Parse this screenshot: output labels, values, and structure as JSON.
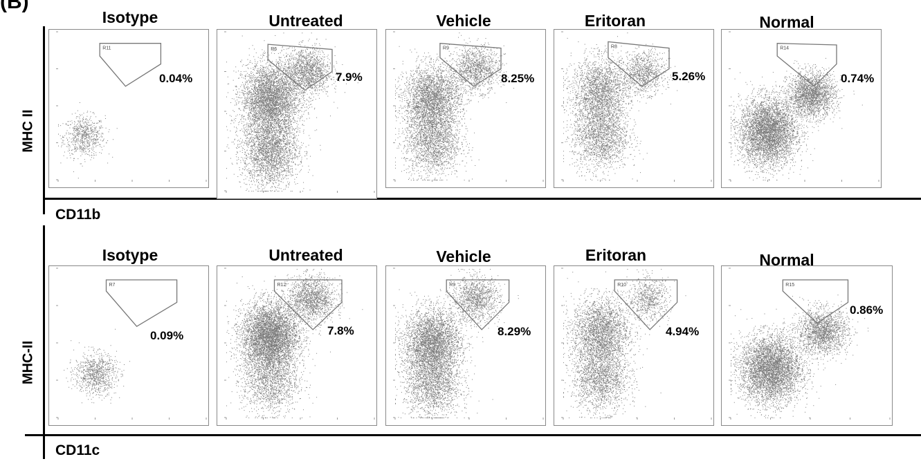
{
  "figure": {
    "panel_letter": "(B)"
  },
  "rows": [
    {
      "ylabel": "MHC II",
      "xlabel": "CD11b",
      "titles": [
        "Isotype",
        "Untreated",
        "Vehicle",
        "Eritoran",
        "Normal"
      ]
    },
    {
      "ylabel": "MHC-II",
      "xlabel": "CD11c",
      "titles": [
        "Isotype",
        "Untreated",
        "Vehicle",
        "Eritoran",
        "Normal"
      ]
    }
  ],
  "chart_data": [
    {
      "type": "scatter",
      "title": "Isotype",
      "xlabel": "CD11b",
      "ylabel": "MHC II",
      "xscale": "log",
      "yscale": "log",
      "xlim": [
        1,
        10000
      ],
      "ylim": [
        1,
        10000
      ],
      "gate": "R11",
      "gate_percent": "0.04%",
      "populations": [
        {
          "x": 5,
          "y": 15,
          "n": 700,
          "density": "low"
        }
      ]
    },
    {
      "type": "scatter",
      "title": "Untreated",
      "xlabel": "CD11b",
      "ylabel": "MHC II",
      "xscale": "log",
      "yscale": "log",
      "xlim": [
        1,
        10000
      ],
      "ylim": [
        1,
        10000
      ],
      "gate": "R6",
      "gate_percent": "7.9%",
      "populations": [
        {
          "x": 15,
          "y": 200,
          "n": 4000,
          "density": "high"
        },
        {
          "x": 15,
          "y": 10,
          "n": 2500,
          "density": "high"
        },
        {
          "x": 150,
          "y": 1000,
          "n": 1500,
          "density": "medium"
        }
      ]
    },
    {
      "type": "scatter",
      "title": "Vehicle",
      "xlabel": "CD11b",
      "ylabel": "MHC II",
      "xscale": "log",
      "yscale": "log",
      "xlim": [
        1,
        10000
      ],
      "ylim": [
        1,
        10000
      ],
      "gate": "R9",
      "gate_percent": "8.25%",
      "populations": [
        {
          "x": 10,
          "y": 150,
          "n": 3000,
          "density": "high"
        },
        {
          "x": 10,
          "y": 10,
          "n": 1800,
          "density": "high"
        },
        {
          "x": 150,
          "y": 1000,
          "n": 1200,
          "density": "medium"
        }
      ]
    },
    {
      "type": "scatter",
      "title": "Eritoran",
      "xlabel": "CD11b",
      "ylabel": "MHC II",
      "xscale": "log",
      "yscale": "log",
      "xlim": [
        1,
        10000
      ],
      "ylim": [
        1,
        10000
      ],
      "gate": "R8",
      "gate_percent": "5.26%",
      "populations": [
        {
          "x": 10,
          "y": 250,
          "n": 2200,
          "density": "high"
        },
        {
          "x": 10,
          "y": 15,
          "n": 1800,
          "density": "high"
        },
        {
          "x": 150,
          "y": 800,
          "n": 900,
          "density": "low"
        }
      ]
    },
    {
      "type": "scatter",
      "title": "Normal",
      "xlabel": "CD11b",
      "ylabel": "MHC II",
      "xscale": "log",
      "yscale": "log",
      "xlim": [
        1,
        10000
      ],
      "ylim": [
        1,
        10000
      ],
      "gate": "R14",
      "gate_percent": "0.74%",
      "populations": [
        {
          "x": 10,
          "y": 20,
          "n": 4500,
          "density": "high"
        },
        {
          "x": 150,
          "y": 200,
          "n": 2200,
          "density": "medium"
        }
      ]
    },
    {
      "type": "scatter",
      "title": "Isotype",
      "xlabel": "CD11c",
      "ylabel": "MHC-II",
      "xscale": "log",
      "yscale": "log",
      "xlim": [
        1,
        10000
      ],
      "ylim": [
        1,
        10000
      ],
      "gate": "R7",
      "gate_percent": "0.09%",
      "populations": [
        {
          "x": 10,
          "y": 15,
          "n": 900,
          "density": "low"
        }
      ]
    },
    {
      "type": "scatter",
      "title": "Untreated",
      "xlabel": "CD11c",
      "ylabel": "MHC-II",
      "xscale": "log",
      "yscale": "log",
      "xlim": [
        1,
        10000
      ],
      "ylim": [
        1,
        10000
      ],
      "gate": "R12",
      "gate_percent": "7.8%",
      "populations": [
        {
          "x": 15,
          "y": 150,
          "n": 5000,
          "density": "high"
        },
        {
          "x": 15,
          "y": 10,
          "n": 1500,
          "density": "high"
        },
        {
          "x": 200,
          "y": 1500,
          "n": 1500,
          "density": "medium"
        }
      ]
    },
    {
      "type": "scatter",
      "title": "Vehicle",
      "xlabel": "CD11c",
      "ylabel": "MHC-II",
      "xscale": "log",
      "yscale": "log",
      "xlim": [
        1,
        10000
      ],
      "ylim": [
        1,
        10000
      ],
      "gate": "R9",
      "gate_percent": "8.29%",
      "populations": [
        {
          "x": 10,
          "y": 100,
          "n": 3500,
          "density": "high"
        },
        {
          "x": 10,
          "y": 8,
          "n": 1800,
          "density": "high"
        },
        {
          "x": 150,
          "y": 1500,
          "n": 1200,
          "density": "medium"
        }
      ]
    },
    {
      "type": "scatter",
      "title": "Eritoran",
      "xlabel": "CD11c",
      "ylabel": "MHC-II",
      "xscale": "log",
      "yscale": "log",
      "xlim": [
        1,
        10000
      ],
      "ylim": [
        1,
        10000
      ],
      "gate": "R10",
      "gate_percent": "4.94%",
      "populations": [
        {
          "x": 10,
          "y": 200,
          "n": 2500,
          "density": "high"
        },
        {
          "x": 10,
          "y": 12,
          "n": 1800,
          "density": "high"
        },
        {
          "x": 200,
          "y": 1500,
          "n": 700,
          "density": "low"
        }
      ]
    },
    {
      "type": "scatter",
      "title": "Normal",
      "xlabel": "CD11c",
      "ylabel": "MHC-II",
      "xscale": "log",
      "yscale": "log",
      "xlim": [
        1,
        10000
      ],
      "ylim": [
        1,
        10000
      ],
      "gate": "R15",
      "gate_percent": "0.86%",
      "populations": [
        {
          "x": 10,
          "y": 20,
          "n": 4500,
          "density": "high"
        },
        {
          "x": 200,
          "y": 200,
          "n": 1800,
          "density": "medium"
        }
      ]
    }
  ]
}
